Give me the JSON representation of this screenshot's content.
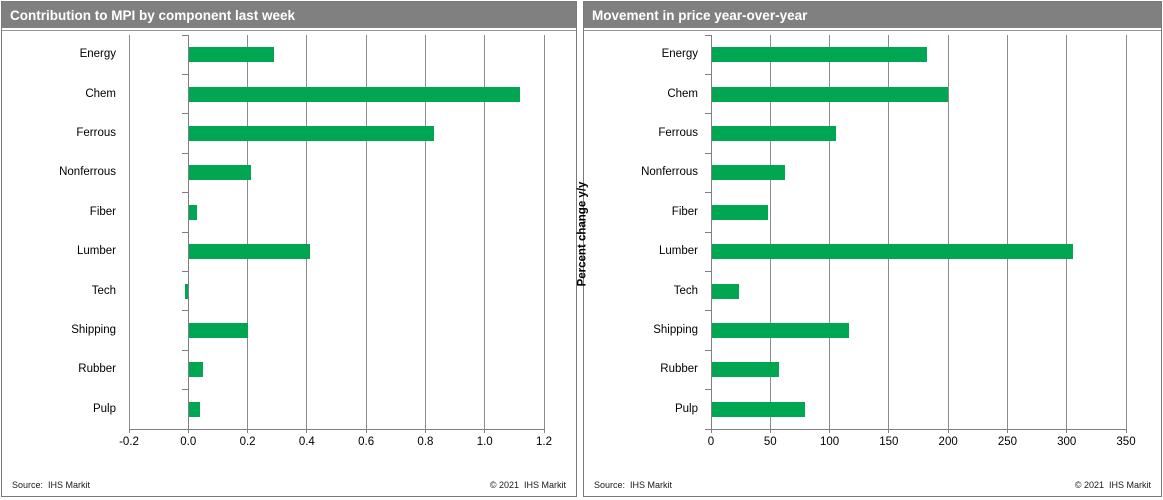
{
  "chart_data": [
    {
      "type": "bar",
      "orientation": "horizontal",
      "title": "Contribution to MPI by component last week",
      "ylabel": "Percent change",
      "categories": [
        "Energy",
        "Chem",
        "Ferrous",
        "Nonferrous",
        "Fiber",
        "Lumber",
        "Tech",
        "Shipping",
        "Rubber",
        "Pulp"
      ],
      "values": [
        0.29,
        1.12,
        0.83,
        0.21,
        0.03,
        0.41,
        -0.01,
        0.2,
        0.05,
        0.04
      ],
      "xlim": [
        -0.2,
        1.2
      ],
      "xticks": [
        -0.2,
        0,
        0.2,
        0.4,
        0.6,
        0.8,
        1,
        1.2
      ],
      "xtick_labels": [
        "-0.2",
        "0.0",
        "0.2",
        "0.4",
        "0.6",
        "0.8",
        "1.0",
        "1.2"
      ],
      "grid": true,
      "legend": "none",
      "bar_color": "#00a651",
      "source": "Source:  IHS Markit",
      "copyright": "© 2021  IHS Markit"
    },
    {
      "type": "bar",
      "orientation": "horizontal",
      "title": "Movement in price year-over-year",
      "ylabel": "Percent change y/y",
      "categories": [
        "Energy",
        "Chem",
        "Ferrous",
        "Nonferrous",
        "Fiber",
        "Lumber",
        "Tech",
        "Shipping",
        "Rubber",
        "Pulp"
      ],
      "values": [
        182,
        200,
        105,
        62,
        48,
        305,
        24,
        116,
        57,
        79
      ],
      "xlim": [
        0,
        350
      ],
      "xticks": [
        0,
        50,
        100,
        150,
        200,
        250,
        300,
        350
      ],
      "xtick_labels": [
        "0",
        "50",
        "100",
        "150",
        "200",
        "250",
        "300",
        "350"
      ],
      "grid": true,
      "legend": "none",
      "bar_color": "#00a651",
      "source": "Source:  IHS Markit",
      "copyright": "© 2021  IHS Markit"
    }
  ],
  "colors": {
    "bar_green": "#00a651",
    "titlebar_bg": "#808080",
    "titlebar_text": "#ffffff",
    "gridline": "#8c8c8c",
    "axis": "#808080",
    "panel_border": "#7a7a7a",
    "text": "#000000"
  }
}
